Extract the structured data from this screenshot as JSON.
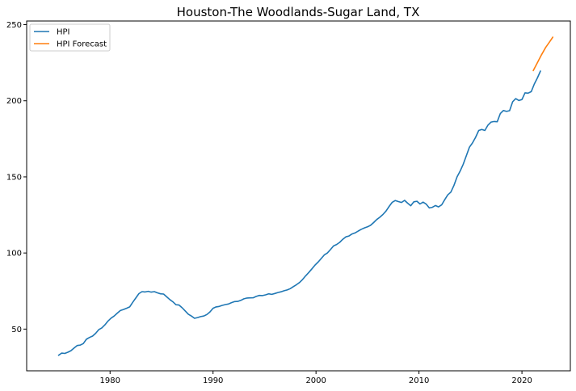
{
  "chart_data": {
    "type": "line",
    "title": "Houston-The Woodlands-Sugar Land, TX",
    "xlabel": "",
    "ylabel": "",
    "xlim": [
      1971.9,
      2024.7
    ],
    "ylim": [
      22.6,
      252.4
    ],
    "x_ticks": [
      1980,
      1990,
      2000,
      2010,
      2020
    ],
    "y_ticks": [
      50,
      100,
      150,
      200,
      250
    ],
    "grid": false,
    "legend_position": "top-left",
    "series": [
      {
        "name": "HPI",
        "color": "#1f77b4",
        "points": [
          [
            1975.0,
            32.8
          ],
          [
            1975.3,
            34.2
          ],
          [
            1975.6,
            34.0
          ],
          [
            1975.9,
            34.8
          ],
          [
            1976.2,
            35.8
          ],
          [
            1976.5,
            37.5
          ],
          [
            1976.8,
            39.2
          ],
          [
            1977.1,
            39.5
          ],
          [
            1977.4,
            40.5
          ],
          [
            1977.7,
            43.3
          ],
          [
            1978.0,
            44.5
          ],
          [
            1978.3,
            45.4
          ],
          [
            1978.6,
            47.2
          ],
          [
            1978.9,
            49.6
          ],
          [
            1979.2,
            50.8
          ],
          [
            1979.5,
            52.8
          ],
          [
            1979.8,
            55.3
          ],
          [
            1980.1,
            57.2
          ],
          [
            1980.4,
            58.6
          ],
          [
            1980.7,
            60.5
          ],
          [
            1981.0,
            62.2
          ],
          [
            1981.3,
            62.9
          ],
          [
            1981.6,
            63.7
          ],
          [
            1981.9,
            64.6
          ],
          [
            1982.2,
            67.6
          ],
          [
            1982.5,
            70.4
          ],
          [
            1982.8,
            73.3
          ],
          [
            1983.1,
            74.6
          ],
          [
            1983.4,
            74.4
          ],
          [
            1983.7,
            74.8
          ],
          [
            1984.0,
            74.3
          ],
          [
            1984.3,
            74.6
          ],
          [
            1984.6,
            73.8
          ],
          [
            1984.9,
            73.2
          ],
          [
            1985.2,
            73.0
          ],
          [
            1985.5,
            71.2
          ],
          [
            1985.8,
            69.4
          ],
          [
            1986.1,
            67.9
          ],
          [
            1986.4,
            66.0
          ],
          [
            1986.7,
            65.8
          ],
          [
            1987.0,
            64.0
          ],
          [
            1987.3,
            61.9
          ],
          [
            1987.6,
            59.8
          ],
          [
            1987.9,
            58.6
          ],
          [
            1988.2,
            57.1
          ],
          [
            1988.5,
            57.6
          ],
          [
            1988.8,
            58.2
          ],
          [
            1989.1,
            58.6
          ],
          [
            1989.4,
            59.6
          ],
          [
            1989.7,
            61.3
          ],
          [
            1990.0,
            63.7
          ],
          [
            1990.3,
            64.6
          ],
          [
            1990.6,
            64.9
          ],
          [
            1990.9,
            65.6
          ],
          [
            1991.2,
            66.1
          ],
          [
            1991.5,
            66.5
          ],
          [
            1991.8,
            67.4
          ],
          [
            1992.1,
            68.1
          ],
          [
            1992.4,
            68.2
          ],
          [
            1992.7,
            68.9
          ],
          [
            1993.0,
            69.9
          ],
          [
            1993.3,
            70.4
          ],
          [
            1993.6,
            70.5
          ],
          [
            1993.9,
            70.6
          ],
          [
            1994.2,
            71.5
          ],
          [
            1994.5,
            72.1
          ],
          [
            1994.8,
            72.0
          ],
          [
            1995.1,
            72.5
          ],
          [
            1995.4,
            73.2
          ],
          [
            1995.7,
            72.8
          ],
          [
            1996.0,
            73.4
          ],
          [
            1996.3,
            74.0
          ],
          [
            1996.6,
            74.5
          ],
          [
            1996.9,
            75.2
          ],
          [
            1997.2,
            75.7
          ],
          [
            1997.5,
            76.6
          ],
          [
            1997.8,
            77.9
          ],
          [
            1998.1,
            79.2
          ],
          [
            1998.4,
            80.6
          ],
          [
            1998.7,
            82.6
          ],
          [
            1999.0,
            85.0
          ],
          [
            1999.3,
            87.2
          ],
          [
            1999.6,
            89.6
          ],
          [
            1999.9,
            92.0
          ],
          [
            2000.2,
            94.0
          ],
          [
            2000.5,
            96.3
          ],
          [
            2000.8,
            98.7
          ],
          [
            2001.1,
            100.0
          ],
          [
            2001.4,
            102.2
          ],
          [
            2001.7,
            104.6
          ],
          [
            2002.0,
            105.6
          ],
          [
            2002.3,
            107.0
          ],
          [
            2002.6,
            109.0
          ],
          [
            2002.9,
            110.6
          ],
          [
            2003.2,
            111.2
          ],
          [
            2003.5,
            112.5
          ],
          [
            2003.8,
            113.2
          ],
          [
            2004.1,
            114.4
          ],
          [
            2004.4,
            115.6
          ],
          [
            2004.7,
            116.5
          ],
          [
            2005.0,
            117.2
          ],
          [
            2005.3,
            118.2
          ],
          [
            2005.6,
            120.0
          ],
          [
            2005.9,
            122.0
          ],
          [
            2006.2,
            123.5
          ],
          [
            2006.5,
            125.3
          ],
          [
            2006.8,
            127.5
          ],
          [
            2007.1,
            130.6
          ],
          [
            2007.4,
            133.3
          ],
          [
            2007.7,
            134.5
          ],
          [
            2008.0,
            133.8
          ],
          [
            2008.3,
            133.2
          ],
          [
            2008.6,
            134.6
          ],
          [
            2008.9,
            132.7
          ],
          [
            2009.2,
            131.0
          ],
          [
            2009.5,
            133.6
          ],
          [
            2009.8,
            134.0
          ],
          [
            2010.1,
            132.2
          ],
          [
            2010.4,
            133.4
          ],
          [
            2010.7,
            132.1
          ],
          [
            2011.0,
            129.6
          ],
          [
            2011.3,
            130.0
          ],
          [
            2011.6,
            131.2
          ],
          [
            2011.9,
            130.3
          ],
          [
            2012.2,
            131.6
          ],
          [
            2012.5,
            135.0
          ],
          [
            2012.8,
            138.2
          ],
          [
            2013.1,
            140.0
          ],
          [
            2013.4,
            144.5
          ],
          [
            2013.7,
            150.0
          ],
          [
            2014.0,
            153.8
          ],
          [
            2014.3,
            158.3
          ],
          [
            2014.6,
            164.0
          ],
          [
            2014.9,
            169.5
          ],
          [
            2015.2,
            172.3
          ],
          [
            2015.5,
            176.0
          ],
          [
            2015.8,
            180.5
          ],
          [
            2016.1,
            181.2
          ],
          [
            2016.4,
            180.5
          ],
          [
            2016.7,
            184.0
          ],
          [
            2017.0,
            186.0
          ],
          [
            2017.3,
            186.4
          ],
          [
            2017.6,
            186.2
          ],
          [
            2017.9,
            191.6
          ],
          [
            2018.2,
            193.6
          ],
          [
            2018.5,
            193.0
          ],
          [
            2018.8,
            193.5
          ],
          [
            2019.1,
            199.4
          ],
          [
            2019.4,
            201.4
          ],
          [
            2019.7,
            200.2
          ],
          [
            2020.0,
            200.8
          ],
          [
            2020.3,
            205.2
          ],
          [
            2020.6,
            205.0
          ],
          [
            2020.9,
            206.0
          ],
          [
            2021.2,
            211.0
          ],
          [
            2021.5,
            215.0
          ],
          [
            2021.8,
            219.5
          ]
        ]
      },
      {
        "name": "HPI Forecast",
        "color": "#ff7f0e",
        "points": [
          [
            2021.1,
            219.8
          ],
          [
            2021.5,
            225.0
          ],
          [
            2021.9,
            230.2
          ],
          [
            2022.3,
            235.0
          ],
          [
            2022.7,
            238.8
          ],
          [
            2023.0,
            241.8
          ]
        ]
      }
    ]
  }
}
